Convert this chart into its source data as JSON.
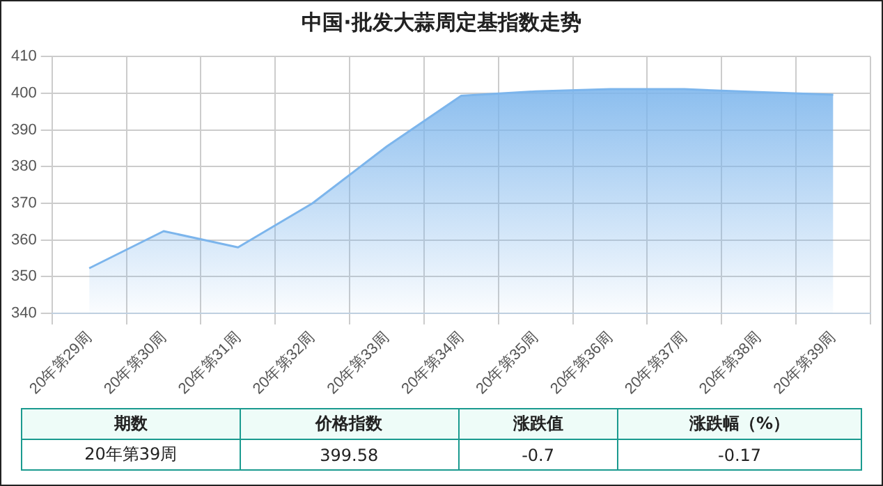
{
  "chart_data": {
    "type": "area",
    "title": "中国·批发大蒜周定基指数走势",
    "categories": [
      "20年第29周",
      "20年第30周",
      "20年第31周",
      "20年第32周",
      "20年第33周",
      "20年第34周",
      "20年第35周",
      "20年第36周",
      "20年第37周",
      "20年第38周",
      "20年第39周"
    ],
    "series": [
      {
        "color": "#7cb5ec",
        "values": [
          352.3,
          362.4,
          358,
          370,
          385.5,
          399.3,
          400.5,
          401.1,
          401.1,
          400.3,
          399.58
        ]
      }
    ],
    "ylim": [
      340,
      410
    ],
    "yticks": [
      340,
      350,
      360,
      370,
      380,
      390,
      400,
      410
    ],
    "grid": true,
    "legend": false,
    "marker": "none",
    "annotations": [
      "期数",
      "价格指数",
      "涨跌值",
      "涨跌幅（%）",
      "20年第39周",
      "399.58",
      "-0.7",
      "-0.17"
    ]
  }
}
